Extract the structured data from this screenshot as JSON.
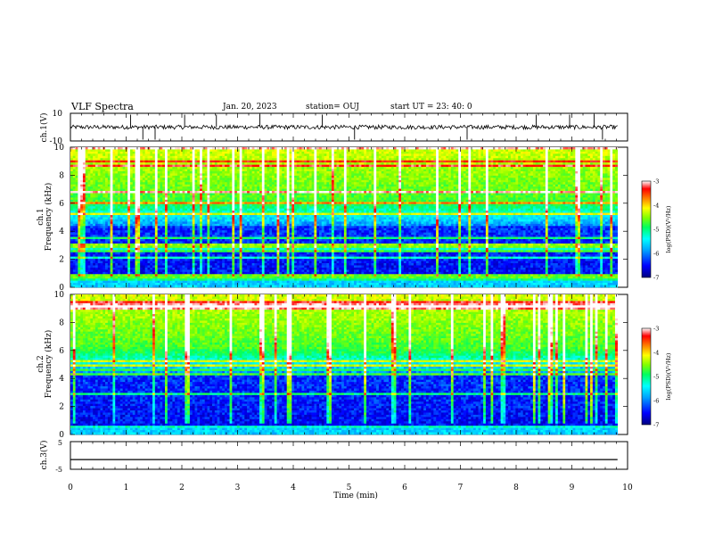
{
  "header": {
    "title": "VLF Spectra",
    "date": "Jan. 20, 2023",
    "station": "station= OUJ",
    "start": "start  UT  =   23: 40: 0"
  },
  "chart_data": [
    {
      "type": "line",
      "panel": "ch1-waveform",
      "ylabel": "ch.1(V)",
      "ylim": [
        -10,
        10
      ],
      "yticks": [
        "10",
        "-10"
      ],
      "xlim": [
        0,
        10
      ],
      "description_values": {
        "baseline": 0,
        "noise_amplitude": 1.5
      },
      "spikes_x": [
        1.08,
        1.3,
        1.52,
        2.05,
        2.62,
        3.4,
        4.52,
        5.1,
        7.12,
        8.36,
        8.96,
        9.4,
        9.55
      ]
    },
    {
      "type": "heatmap",
      "panel": "ch1-spectrogram",
      "ylabel": "ch.1 Frequency (kHz)",
      "ylim": [
        0,
        10
      ],
      "yticks": [
        "0",
        "2",
        "4",
        "6",
        "8",
        "10"
      ],
      "xlim": [
        0,
        9.8
      ],
      "colorbar": {
        "label": "log(PSD)(V²/Hz)",
        "range": [
          -7,
          -3
        ],
        "ticks": [
          "-3",
          "-4",
          "-5",
          "-6",
          "-7"
        ]
      },
      "colormap": [
        "#00007f",
        "#0000ff",
        "#00a0ff",
        "#00ffff",
        "#00ff60",
        "#80ff00",
        "#ffff00",
        "#ff8000",
        "#ff0000",
        "#ffffff"
      ]
    },
    {
      "type": "heatmap",
      "panel": "ch2-spectrogram",
      "ylabel": "ch.2 Frequency (kHz)",
      "ylim": [
        0,
        10
      ],
      "yticks": [
        "0",
        "2",
        "4",
        "6",
        "8",
        "10"
      ],
      "xlim": [
        0,
        9.8
      ],
      "colorbar": {
        "label": "log(PSD)(V²/Hz)",
        "range": [
          -7,
          -3
        ],
        "ticks": [
          "-3",
          "-4",
          "-5",
          "-6",
          "-7"
        ]
      }
    },
    {
      "type": "line",
      "panel": "ch3-waveform",
      "ylabel": "ch.3(V)",
      "ylim": [
        -5,
        5
      ],
      "yticks": [
        "5",
        "0",
        "-5"
      ],
      "xlim": [
        0,
        10
      ],
      "values": {
        "constant": -1.5
      }
    }
  ],
  "xaxis": {
    "label": "Time  (min)",
    "ticks": [
      "0",
      "1",
      "2",
      "3",
      "4",
      "5",
      "6",
      "7",
      "8",
      "9",
      "10"
    ],
    "range": [
      0,
      10
    ]
  }
}
